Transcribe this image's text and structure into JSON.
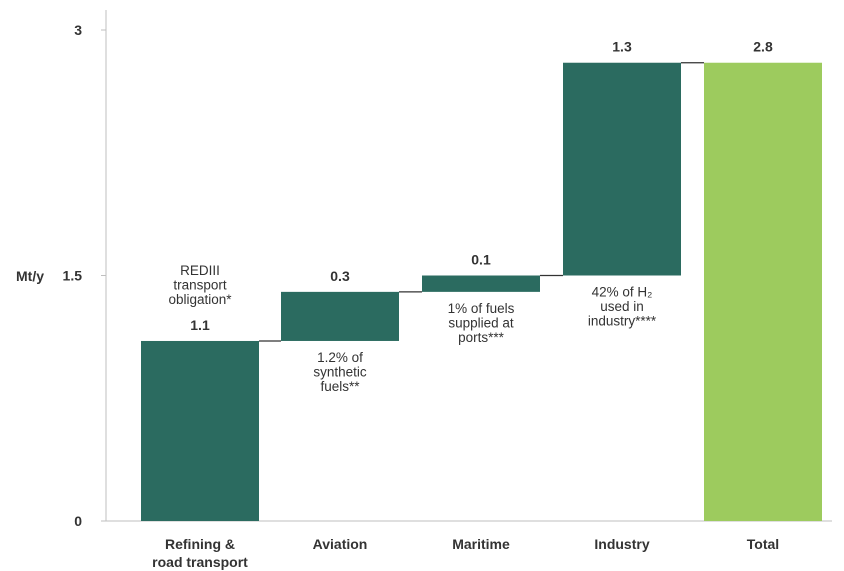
{
  "chart_data": {
    "type": "bar",
    "subtype": "waterfall",
    "ylabel": "Mt/y",
    "ylim": [
      0,
      3
    ],
    "yticks": [
      "0",
      "1.5",
      "3"
    ],
    "grid": false,
    "legend": "none",
    "categories": [
      "Refining & road transport",
      "Aviation",
      "Maritime",
      "Industry",
      "Total"
    ],
    "category_lines": [
      [
        "Refining &",
        "road transport"
      ],
      [
        "Aviation"
      ],
      [
        "Maritime"
      ],
      [
        "Industry"
      ],
      [
        "Total"
      ]
    ],
    "values": [
      1.1,
      0.3,
      0.1,
      1.3,
      2.8
    ],
    "value_labels": [
      "1.1",
      "0.3",
      "0.1",
      "1.3",
      "2.8"
    ],
    "bar_kind": [
      "increment",
      "increment",
      "increment",
      "increment",
      "total"
    ],
    "annotations": [
      [
        "REDIII",
        "transport",
        "obligation*"
      ],
      [
        "1.2% of",
        "synthetic",
        "fuels**"
      ],
      [
        "1% of fuels",
        "supplied at",
        "ports***"
      ],
      [
        "42% of H₂",
        "used in",
        "industry****"
      ],
      []
    ],
    "colors": {
      "increment": "#2b6b60",
      "total": "#9dcb5e",
      "axis": "#bfbfbf",
      "connector": "#333333"
    }
  }
}
